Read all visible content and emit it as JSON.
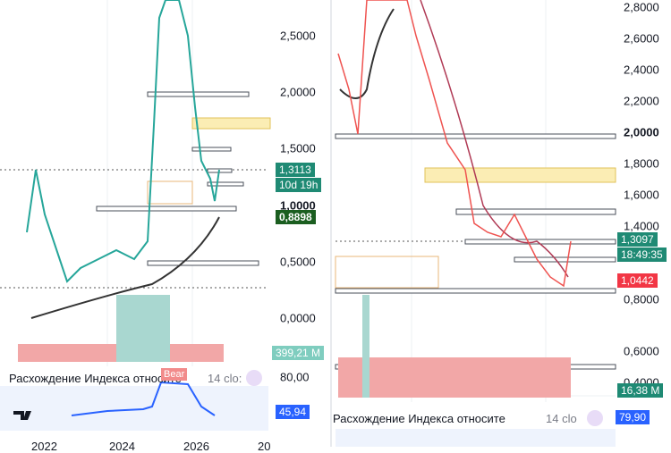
{
  "left": {
    "price_labels": [
      "2,5000",
      "2,0000",
      "1,5000",
      "1,0000",
      "0,5000",
      "0,0000"
    ],
    "badges": {
      "last_price": "1,3113",
      "countdown": "10d 19h",
      "level": "0,8898",
      "volume": "399,21 M"
    },
    "indicator": {
      "title": "Расхождение Индекса относите",
      "params": "14 clo:",
      "tag": "Bear",
      "scale_label": "80,00",
      "value": "45,94"
    },
    "time_labels": [
      "2022",
      "2024",
      "2026",
      "20"
    ]
  },
  "right": {
    "price_labels": [
      "2,8000",
      "2,6000",
      "2,4000",
      "2,2000",
      "2,0000",
      "1,8000",
      "1,6000",
      "1,4000",
      "0,8000",
      "0,6000",
      "0,4000"
    ],
    "badges": {
      "last_price": "1,3097",
      "countdown": "18:49:35",
      "level": "1,0442",
      "volume": "16,38 M"
    },
    "indicator": {
      "title": "Расхождение Индекса относите",
      "params": "14 clo",
      "value": "79,90"
    }
  }
}
